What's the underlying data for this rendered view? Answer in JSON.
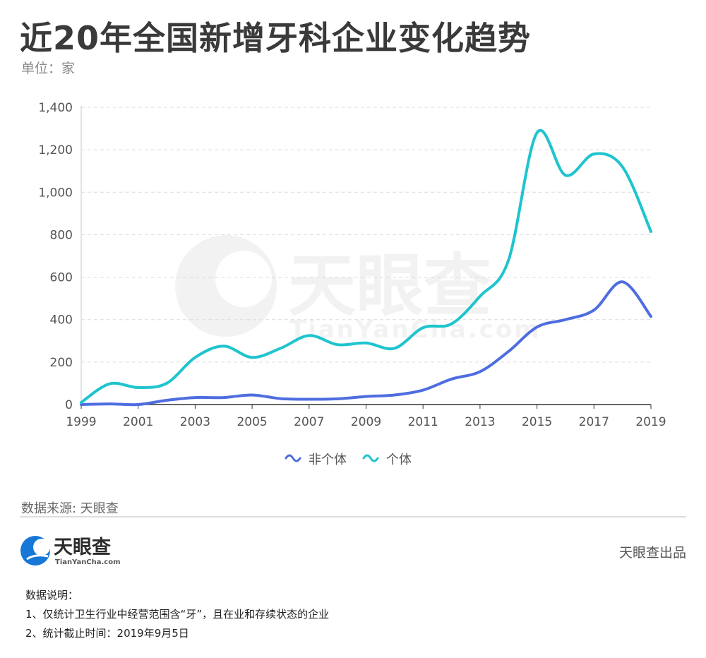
{
  "header": {
    "title": "近20年全国新增牙科企业变化趋势",
    "unit": "单位：家"
  },
  "chart_data": {
    "type": "line",
    "x": [
      1999,
      2000,
      2001,
      2002,
      2003,
      2004,
      2005,
      2006,
      2007,
      2008,
      2009,
      2010,
      2011,
      2012,
      2013,
      2014,
      2015,
      2016,
      2017,
      2018,
      2019
    ],
    "x_tick_labels": [
      "1999",
      "2001",
      "2003",
      "2005",
      "2007",
      "2009",
      "2011",
      "2013",
      "2015",
      "2017",
      "2019"
    ],
    "y_tick_labels": [
      "0",
      "200",
      "400",
      "600",
      "800",
      "1,000",
      "1,200",
      "1,400"
    ],
    "ylim": [
      0,
      1400
    ],
    "grid": true,
    "legend_position": "bottom-center",
    "series": [
      {
        "name": "非个体",
        "color": "#4e6de0",
        "values": [
          0,
          3,
          0,
          20,
          33,
          33,
          45,
          28,
          25,
          27,
          38,
          45,
          68,
          120,
          155,
          250,
          365,
          400,
          445,
          578,
          415
        ]
      },
      {
        "name": "个体",
        "color": "#1ec4ce",
        "values": [
          10,
          98,
          80,
          100,
          222,
          275,
          222,
          265,
          325,
          282,
          290,
          265,
          362,
          380,
          510,
          680,
          1280,
          1080,
          1180,
          1120,
          815
        ]
      }
    ]
  },
  "watermark": {
    "brand": "天眼查",
    "domain": "TianYanCha.com"
  },
  "footer": {
    "source": "数据来源: 天眼查",
    "logo_text": "天眼查",
    "logo_domain": "TianYanCha.com",
    "produced_by": "天眼查出品",
    "logo_color": "#1677d6"
  },
  "notes": {
    "heading": "数据说明：",
    "items": [
      "1、仅统计卫生行业中经营范围含“牙”，且在业和存续状态的企业",
      "2、统计截止时间：2019年9月5日"
    ]
  }
}
